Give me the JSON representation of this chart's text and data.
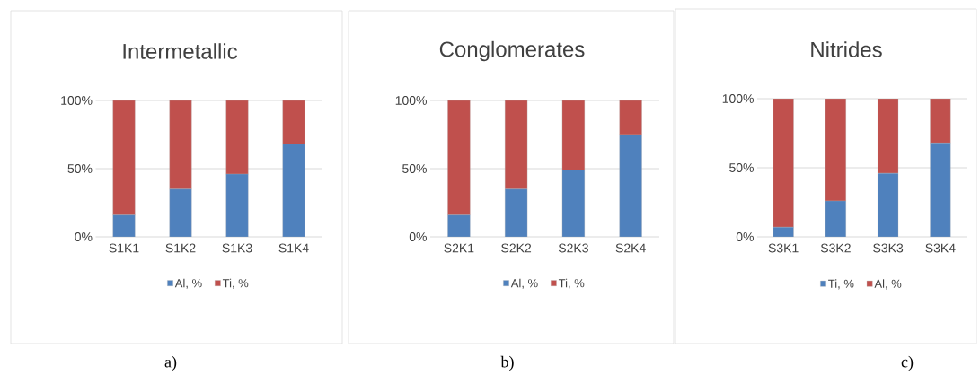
{
  "chart_data": [
    {
      "type": "bar",
      "stacked": true,
      "title": "Intermetallic",
      "categories": [
        "S1K1",
        "S1K2",
        "S1K3",
        "S1K4"
      ],
      "series": [
        {
          "name": "Al, %",
          "color": "#4f81bd",
          "values": [
            16,
            35,
            46,
            68
          ]
        },
        {
          "name": "Ti, %",
          "color": "#c0504d",
          "values": [
            84,
            65,
            54,
            32
          ]
        }
      ],
      "ylim": [
        0,
        100
      ],
      "yticks": [
        {
          "value": 0,
          "label": "0%"
        },
        {
          "value": 50,
          "label": "50%"
        },
        {
          "value": 100,
          "label": "100%"
        }
      ],
      "grid": "y",
      "legend": "bottom",
      "annotations": [
        "a)"
      ]
    },
    {
      "type": "bar",
      "stacked": true,
      "title": "Conglomerates",
      "categories": [
        "S2K1",
        "S2K2",
        "S2K3",
        "S2K4"
      ],
      "series": [
        {
          "name": "Al, %",
          "color": "#4f81bd",
          "values": [
            16,
            35,
            49,
            75
          ]
        },
        {
          "name": "Ti, %",
          "color": "#c0504d",
          "values": [
            84,
            65,
            51,
            25
          ]
        }
      ],
      "ylim": [
        0,
        100
      ],
      "yticks": [
        {
          "value": 0,
          "label": "0%"
        },
        {
          "value": 50,
          "label": "50%"
        },
        {
          "value": 100,
          "label": "100%"
        }
      ],
      "grid": "y",
      "legend": "bottom",
      "annotations": [
        "b)"
      ]
    },
    {
      "type": "bar",
      "stacked": true,
      "title": "Nitrides",
      "categories": [
        "S3K1",
        "S3K2",
        "S3K3",
        "S3K4"
      ],
      "series": [
        {
          "name": "Ti, %",
          "color": "#4f81bd",
          "values": [
            7,
            26,
            46,
            68
          ]
        },
        {
          "name": "Al, %",
          "color": "#c0504d",
          "values": [
            93,
            74,
            54,
            32
          ]
        }
      ],
      "ylim": [
        0,
        100
      ],
      "yticks": [
        {
          "value": 0,
          "label": "0%"
        },
        {
          "value": 50,
          "label": "50%"
        },
        {
          "value": 100,
          "label": "100%"
        }
      ],
      "grid": "y",
      "legend": "bottom",
      "annotations": [
        "c)"
      ]
    }
  ]
}
